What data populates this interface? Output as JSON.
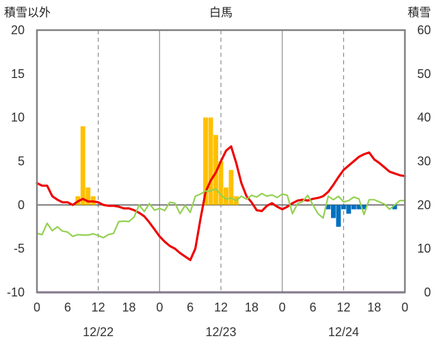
{
  "chart_data": {
    "type": "bar+line",
    "title": "白馬",
    "ylabel_left": "積雪以外",
    "ylabel_right": "積雪",
    "ylim_left": [
      -10,
      20
    ],
    "ylim_right": [
      0,
      60
    ],
    "left_ticks": [
      "20",
      "15",
      "10",
      "5",
      "0",
      "-5",
      "-10"
    ],
    "right_ticks": [
      "60",
      "50",
      "40",
      "30",
      "20",
      "10",
      "0"
    ],
    "x_range_hours": [
      0,
      72
    ],
    "hour_ticks": [
      "0",
      "6",
      "12",
      "18",
      "0",
      "6",
      "12",
      "18",
      "0",
      "6",
      "12",
      "18",
      "0"
    ],
    "date_labels": [
      "12/22",
      "12/23",
      "12/24"
    ],
    "grid": "solid every 24h, dashed at noon",
    "colors": {
      "temperature": "#ee0000",
      "snow_depth": "#92d050",
      "precipitation": "#ffc000",
      "snow_change": "#0070c0",
      "baseline": "#7030a0",
      "frame": "#808080"
    },
    "series": [
      {
        "key": "temperature",
        "axis": "left",
        "style": "line",
        "x": [
          0,
          1,
          2,
          3,
          4,
          5,
          6,
          7,
          8,
          9,
          10,
          11,
          12,
          13,
          14,
          15,
          16,
          17,
          18,
          19,
          20,
          21,
          22,
          23,
          24,
          25,
          26,
          27,
          28,
          29,
          30,
          31,
          32,
          33,
          34,
          35,
          36,
          37,
          38,
          39,
          40,
          41,
          42,
          43,
          44,
          45,
          46,
          47,
          48,
          49,
          50,
          51,
          52,
          53,
          54,
          55,
          56,
          57,
          58,
          59,
          60,
          61,
          62,
          63,
          64,
          65,
          66,
          67,
          68,
          69,
          70,
          71,
          72
        ],
        "values": [
          2.5,
          2.2,
          2.2,
          1.0,
          0.6,
          0.3,
          0.3,
          0.0,
          0.4,
          0.7,
          0.4,
          0.4,
          0.3,
          0.0,
          -0.1,
          -0.1,
          -0.2,
          -0.4,
          -0.4,
          -0.6,
          -0.9,
          -1.3,
          -2.0,
          -2.8,
          -3.6,
          -4.2,
          -4.7,
          -5.0,
          -5.5,
          -5.9,
          -6.3,
          -5.0,
          -1.6,
          1.5,
          2.8,
          3.7,
          5.0,
          6.2,
          6.7,
          4.8,
          2.5,
          1.0,
          0.3,
          -0.6,
          -0.7,
          -0.1,
          0.2,
          -0.2,
          -0.5,
          -0.2,
          0.2,
          0.5,
          0.6,
          0.5,
          0.7,
          0.8,
          1.0,
          1.5,
          2.3,
          3.2,
          4.0,
          4.5,
          5.0,
          5.5,
          5.8,
          6.0,
          5.2,
          4.8,
          4.3,
          3.8,
          3.6,
          3.4,
          3.3
        ]
      },
      {
        "key": "snow_depth",
        "axis": "right",
        "style": "line",
        "x": [
          0,
          1,
          2,
          3,
          4,
          5,
          6,
          7,
          8,
          9,
          10,
          11,
          12,
          13,
          14,
          15,
          16,
          17,
          18,
          19,
          20,
          21,
          22,
          23,
          24,
          25,
          26,
          27,
          28,
          29,
          30,
          31,
          32,
          33,
          34,
          35,
          36,
          37,
          38,
          39,
          40,
          41,
          42,
          43,
          44,
          45,
          46,
          47,
          48,
          49,
          50,
          51,
          52,
          53,
          54,
          55,
          56,
          57,
          58,
          59,
          60,
          61,
          62,
          63,
          64,
          65,
          66,
          67,
          68,
          69,
          70,
          71,
          72
        ],
        "values": [
          13.5,
          13.2,
          15.8,
          14.1,
          15.0,
          14.0,
          13.8,
          12.8,
          13.2,
          13.1,
          13.1,
          13.4,
          13.0,
          12.5,
          13.2,
          13.5,
          16.2,
          16.3,
          16.2,
          17.2,
          20.0,
          18.5,
          20.3,
          18.8,
          19.2,
          18.7,
          20.6,
          20.4,
          18.0,
          19.9,
          18.3,
          22.0,
          22.5,
          23.2,
          23.2,
          23.7,
          22.3,
          21.3,
          21.6,
          21.0,
          22.0,
          21.3,
          22.2,
          21.8,
          22.6,
          22.0,
          22.3,
          21.7,
          22.5,
          22.2,
          18.0,
          20.3,
          20.8,
          22.2,
          20.0,
          18.0,
          17.0,
          22.0,
          21.2,
          22.0,
          20.7,
          21.0,
          21.8,
          21.4,
          17.8,
          21.2,
          21.2,
          20.7,
          20.2,
          19.0,
          20.0,
          21.0,
          21.0
        ]
      },
      {
        "key": "precipitation",
        "axis": "left",
        "style": "bar",
        "x": [
          8,
          9,
          10,
          11,
          33,
          34,
          35,
          36,
          37,
          38,
          39,
          40
        ],
        "values": [
          1.0,
          9.0,
          2.0,
          1.0,
          10.0,
          10.0,
          8.0,
          5.0,
          2.0,
          4.0,
          1.0,
          0.0
        ]
      },
      {
        "key": "snow_change",
        "axis": "left",
        "style": "bar",
        "x": [
          57,
          58,
          59,
          60,
          61,
          62,
          63,
          64,
          65,
          66,
          67,
          68,
          69,
          70,
          71
        ],
        "values": [
          -0.5,
          -1.5,
          -2.5,
          -0.5,
          -1.0,
          -0.5,
          -0.5,
          -0.5,
          0.0,
          0.0,
          0.0,
          0.0,
          0.0,
          -0.5,
          0.0
        ]
      }
    ]
  }
}
